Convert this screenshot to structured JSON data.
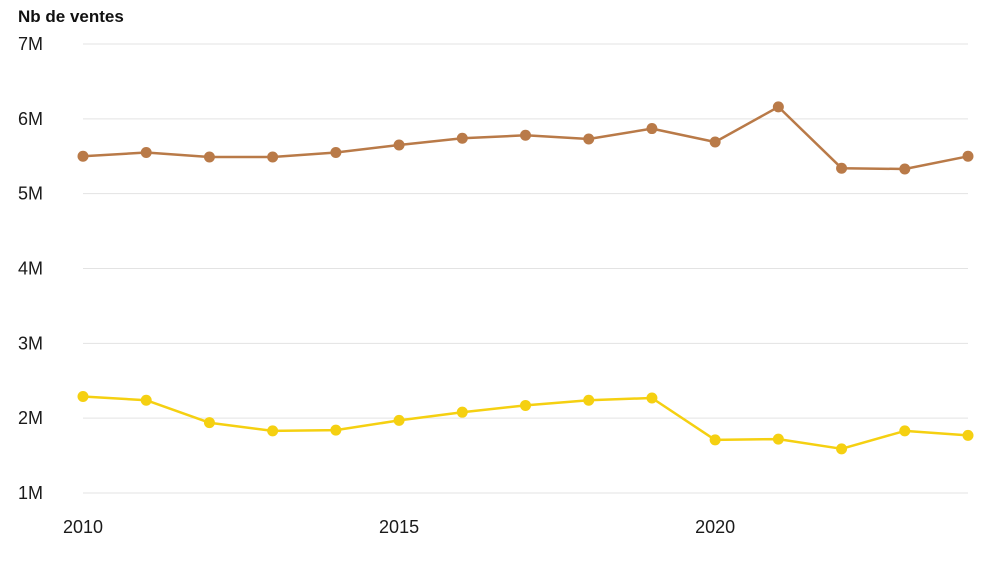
{
  "chart_data": {
    "type": "line",
    "title": "",
    "ylabel": "Nb de ventes",
    "xlabel": "",
    "x": [
      2010,
      2011,
      2012,
      2013,
      2014,
      2015,
      2016,
      2017,
      2018,
      2019,
      2020,
      2021,
      2022,
      2023,
      2024
    ],
    "xlim": [
      2010,
      2024
    ],
    "ylim": [
      1000000,
      7000000
    ],
    "x_ticks": [
      {
        "value": 2010,
        "label": "2010"
      },
      {
        "value": 2015,
        "label": "2015"
      },
      {
        "value": 2020,
        "label": "2020"
      }
    ],
    "y_ticks": [
      {
        "value": 1000000,
        "label": "1M"
      },
      {
        "value": 2000000,
        "label": "2M"
      },
      {
        "value": 3000000,
        "label": "3M"
      },
      {
        "value": 4000000,
        "label": "4M"
      },
      {
        "value": 5000000,
        "label": "5M"
      },
      {
        "value": 6000000,
        "label": "6M"
      },
      {
        "value": 7000000,
        "label": "7M"
      }
    ],
    "grid": true,
    "legend": "none",
    "series": [
      {
        "color": "#b97a48",
        "values": [
          5500000,
          5550000,
          5490000,
          5490000,
          5550000,
          5650000,
          5740000,
          5780000,
          5730000,
          5870000,
          5690000,
          6160000,
          5340000,
          5330000,
          5500000
        ]
      },
      {
        "color": "#f5d011",
        "values": [
          2290000,
          2240000,
          1940000,
          1830000,
          1840000,
          1970000,
          2080000,
          2170000,
          2240000,
          2270000,
          1710000,
          1720000,
          1590000,
          1830000,
          1770000
        ]
      }
    ]
  }
}
